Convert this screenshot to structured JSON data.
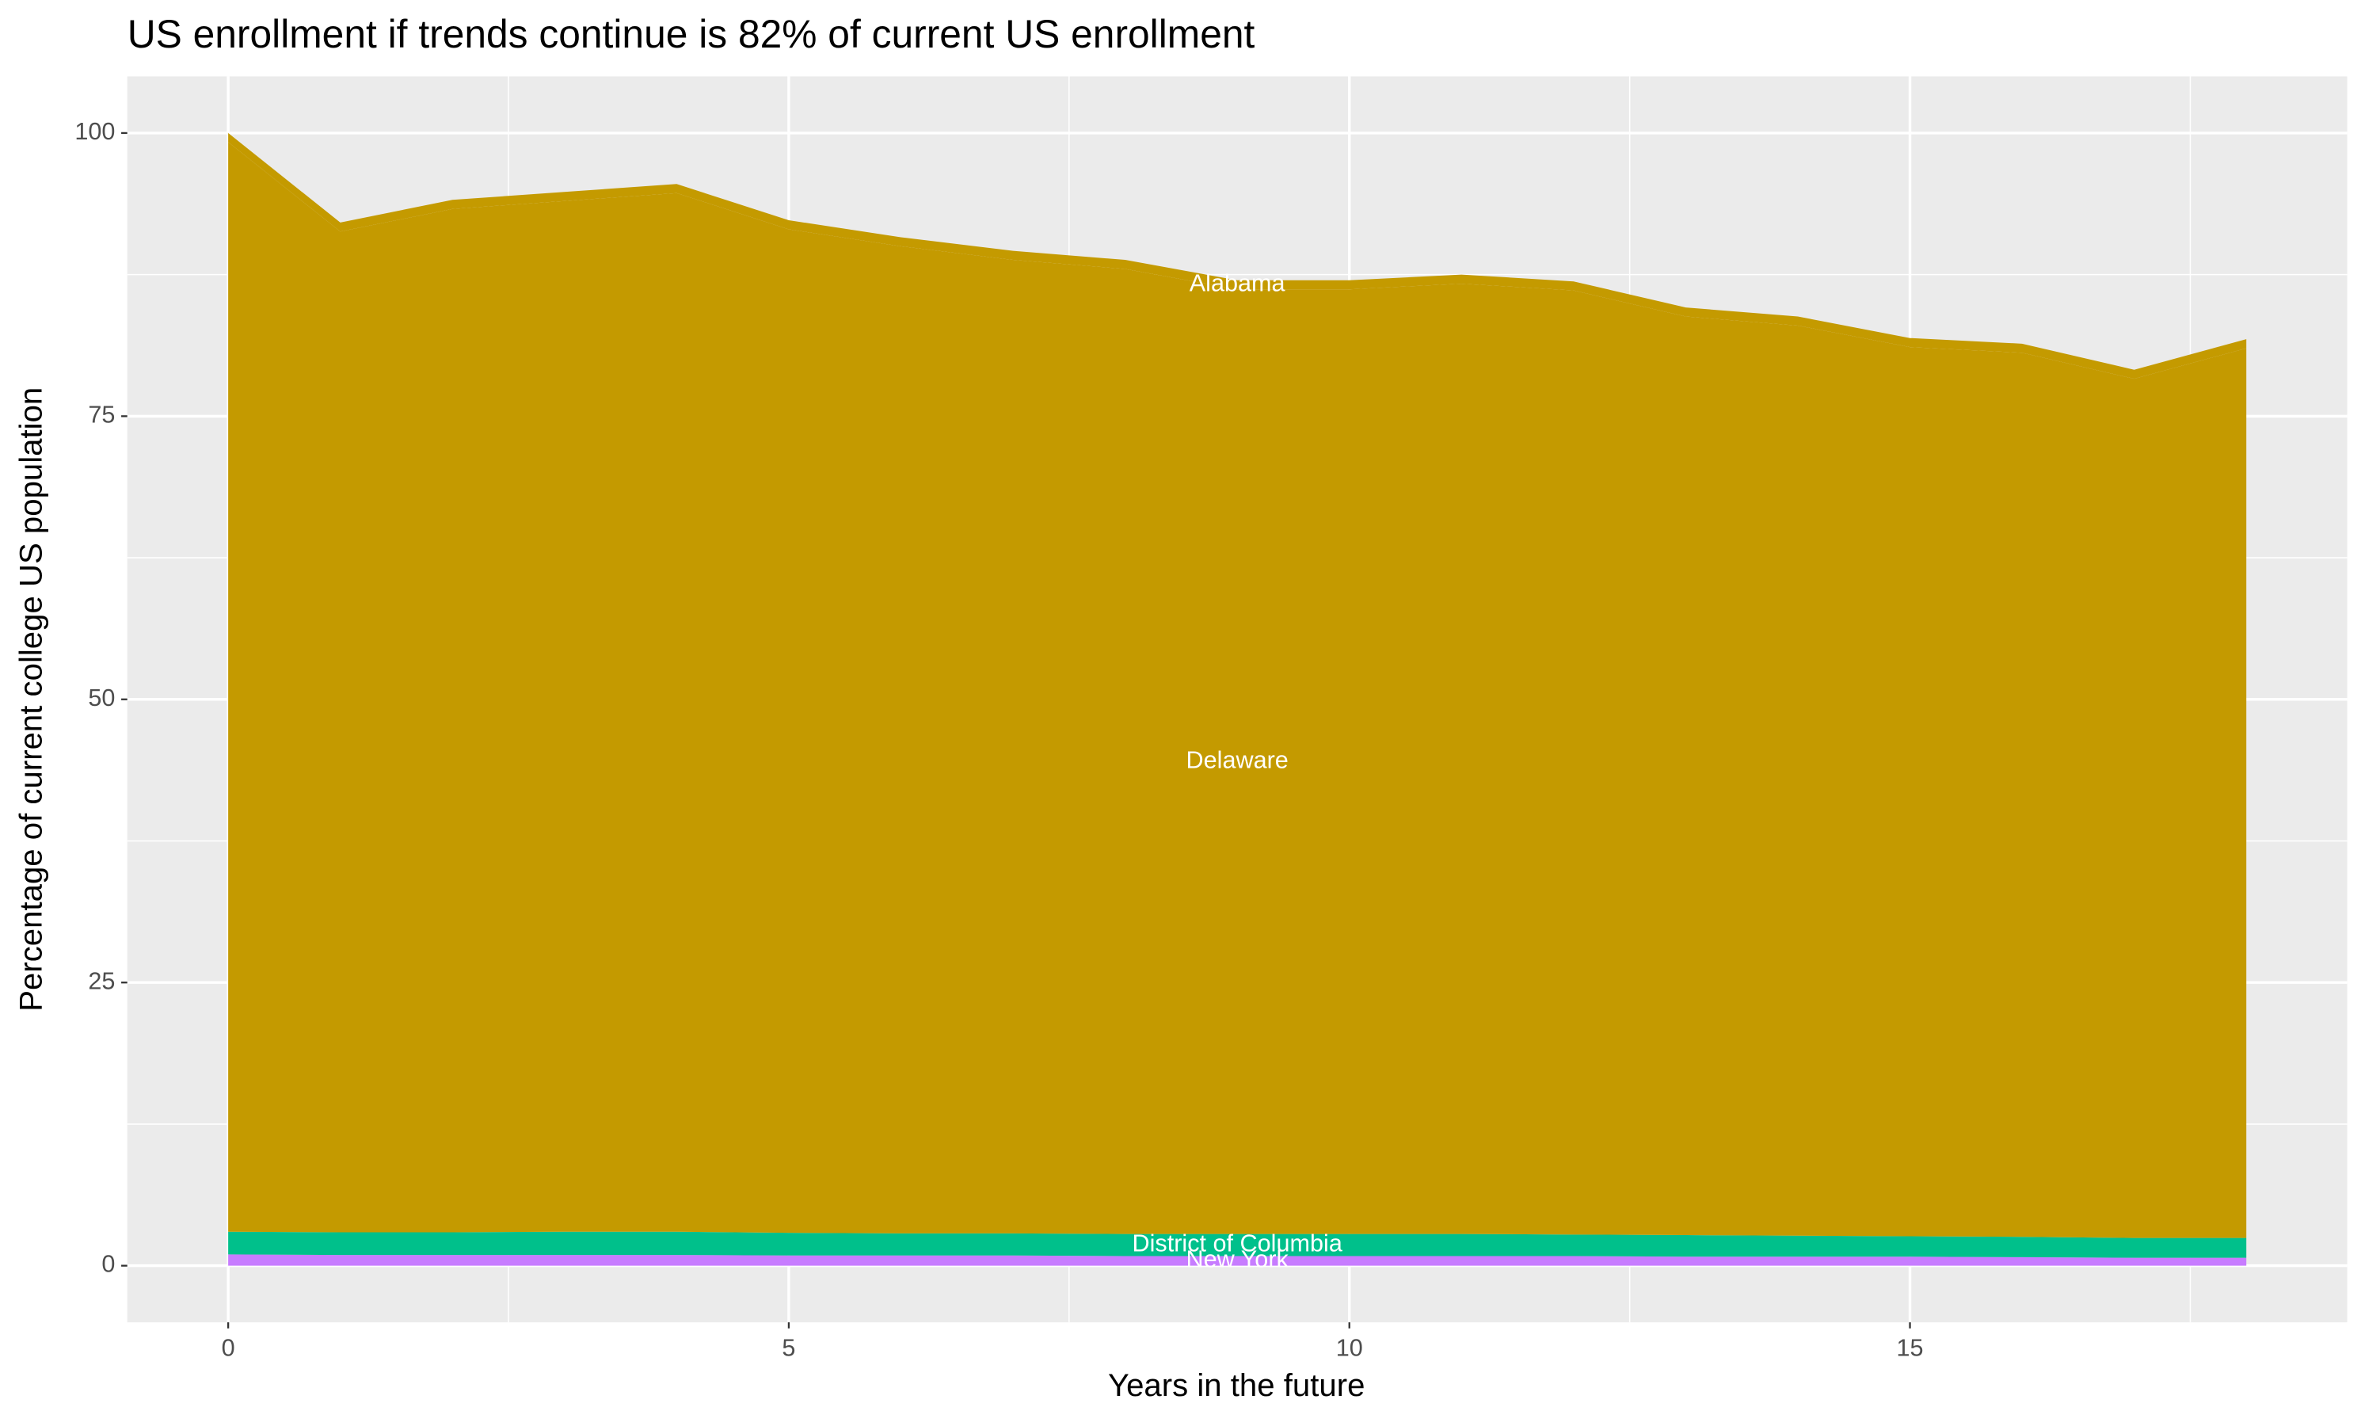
{
  "chart_data": {
    "type": "stacked-area",
    "title": "US enrollment if trends continue is 82% of current US enrollment",
    "x_label": "Years in the future",
    "y_label": "Percentage of current college US population",
    "x": [
      0,
      1,
      2,
      3,
      4,
      5,
      6,
      7,
      8,
      9,
      10,
      11,
      12,
      13,
      14,
      15,
      16,
      17,
      18
    ],
    "series": [
      {
        "name": "New York",
        "color": "#C77CFF",
        "values": [
          1.0,
          0.95,
          0.95,
          0.95,
          0.95,
          0.9,
          0.9,
          0.9,
          0.85,
          0.85,
          0.85,
          0.85,
          0.85,
          0.8,
          0.8,
          0.8,
          0.75,
          0.7,
          0.7
        ]
      },
      {
        "name": "District of Columbia",
        "color": "#00C08B",
        "values": [
          2.0,
          2.0,
          2.0,
          2.05,
          2.05,
          2.0,
          1.95,
          1.95,
          1.95,
          1.95,
          1.95,
          1.95,
          1.9,
          1.9,
          1.85,
          1.8,
          1.8,
          1.75,
          1.75
        ]
      },
      {
        "name": "Delaware",
        "color": "#C49A00",
        "values": [
          96.2,
          88.35,
          90.35,
          91.0,
          91.7,
          88.6,
          87.15,
          85.95,
          85.2,
          83.4,
          83.4,
          83.9,
          83.35,
          81.1,
          80.35,
          78.5,
          78.05,
          75.85,
          78.55
        ]
      },
      {
        "name": "Alabama",
        "color": "#C49A00",
        "values": [
          0.8,
          0.8,
          0.8,
          0.8,
          0.8,
          0.8,
          0.8,
          0.8,
          0.8,
          0.8,
          0.8,
          0.8,
          0.8,
          0.8,
          0.8,
          0.8,
          0.8,
          0.8,
          0.8
        ]
      }
    ],
    "xlim": [
      -0.9,
      18.9
    ],
    "xticks": [
      0,
      5,
      10,
      15
    ],
    "ylim": [
      -5,
      105
    ],
    "yticks": [
      0,
      25,
      50,
      75,
      100
    ],
    "grid": true
  }
}
